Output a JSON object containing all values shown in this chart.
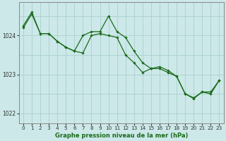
{
  "title": "Graphe pression niveau de la mer (hPa)",
  "bg_color": "#cce8e8",
  "grid_color": "#aad0d0",
  "line_color": "#1a6b1a",
  "marker_color": "#1a6b1a",
  "spine_color": "#888888",
  "xlim": [
    -0.5,
    23.5
  ],
  "ylim": [
    1021.75,
    1024.85
  ],
  "yticks": [
    1022,
    1023,
    1024
  ],
  "xticks": [
    0,
    1,
    2,
    3,
    4,
    5,
    6,
    7,
    8,
    9,
    10,
    11,
    12,
    13,
    14,
    15,
    16,
    17,
    18,
    19,
    20,
    21,
    22,
    23
  ],
  "series1_y": [
    1024.2,
    1024.55,
    1024.05,
    1024.05,
    1023.85,
    1023.7,
    1023.6,
    1023.55,
    1024.0,
    1024.05,
    1024.0,
    1023.95,
    1023.5,
    1023.3,
    1023.05,
    1023.15,
    1023.15,
    1023.05,
    1022.95,
    1022.5,
    1022.4,
    1022.55,
    1022.5,
    1022.85
  ],
  "series2_y": [
    1024.25,
    1024.6,
    1024.05,
    1024.05,
    1023.85,
    1023.7,
    1023.6,
    1024.0,
    1024.1,
    1024.1,
    1024.5,
    1024.1,
    1023.95,
    1023.6,
    1023.3,
    1023.15,
    1023.2,
    1023.1,
    1022.95,
    1022.5,
    1022.38,
    1022.55,
    1022.55,
    1022.85
  ],
  "xlabel_fontsize": 6.0,
  "tick_fontsize": 5.2
}
